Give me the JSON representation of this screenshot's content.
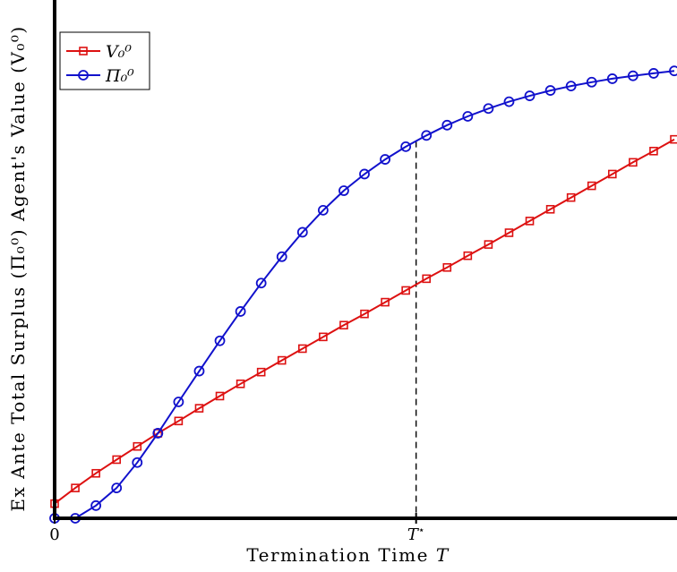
{
  "chart_data": {
    "type": "line",
    "xlabel": "Termination Time T",
    "ylabel": "Ex Ante Total Surplus (Π₀⁰) Agent's Value (V₀⁰)",
    "xlim": [
      0,
      30
    ],
    "ylim": [
      0,
      1.06
    ],
    "x_ticks": [
      {
        "value": 0,
        "label": "0"
      },
      {
        "value": 17.5,
        "label": "T*"
      }
    ],
    "reference_lines": [
      {
        "x": 17.5,
        "style": "dashed",
        "label": "T*"
      }
    ],
    "legend_position": "top-left",
    "grid": false,
    "colors": {
      "V": "#dd1111",
      "Pi": "#1111cc",
      "axis": "#000000"
    },
    "series": [
      {
        "name": "V₀⁰",
        "marker": "square",
        "color": "#dd1111",
        "x": [
          0,
          1,
          2,
          3,
          4,
          5,
          6,
          7,
          8,
          9,
          10,
          11,
          12,
          13,
          14,
          15,
          16,
          17,
          18,
          19,
          20,
          21,
          22,
          23,
          24,
          25,
          26,
          27,
          28,
          29,
          30
        ],
        "values": [
          0.03,
          0.062,
          0.092,
          0.12,
          0.147,
          0.174,
          0.199,
          0.225,
          0.25,
          0.275,
          0.299,
          0.323,
          0.347,
          0.371,
          0.395,
          0.418,
          0.442,
          0.466,
          0.49,
          0.513,
          0.537,
          0.56,
          0.584,
          0.608,
          0.632,
          0.656,
          0.68,
          0.704,
          0.728,
          0.751,
          0.775
        ]
      },
      {
        "name": "Π₀⁰",
        "marker": "circle",
        "color": "#1111cc",
        "x": [
          0,
          1,
          2,
          3,
          4,
          5,
          6,
          7,
          8,
          9,
          10,
          11,
          12,
          13,
          14,
          15,
          16,
          17,
          18,
          19,
          20,
          21,
          22,
          23,
          24,
          25,
          26,
          27,
          28,
          29,
          30
        ],
        "values": [
          0.0,
          0.0,
          0.026,
          0.062,
          0.114,
          0.174,
          0.238,
          0.301,
          0.363,
          0.423,
          0.481,
          0.535,
          0.585,
          0.63,
          0.67,
          0.704,
          0.734,
          0.76,
          0.783,
          0.804,
          0.822,
          0.838,
          0.852,
          0.864,
          0.875,
          0.884,
          0.892,
          0.899,
          0.905,
          0.91,
          0.915
        ]
      }
    ]
  }
}
